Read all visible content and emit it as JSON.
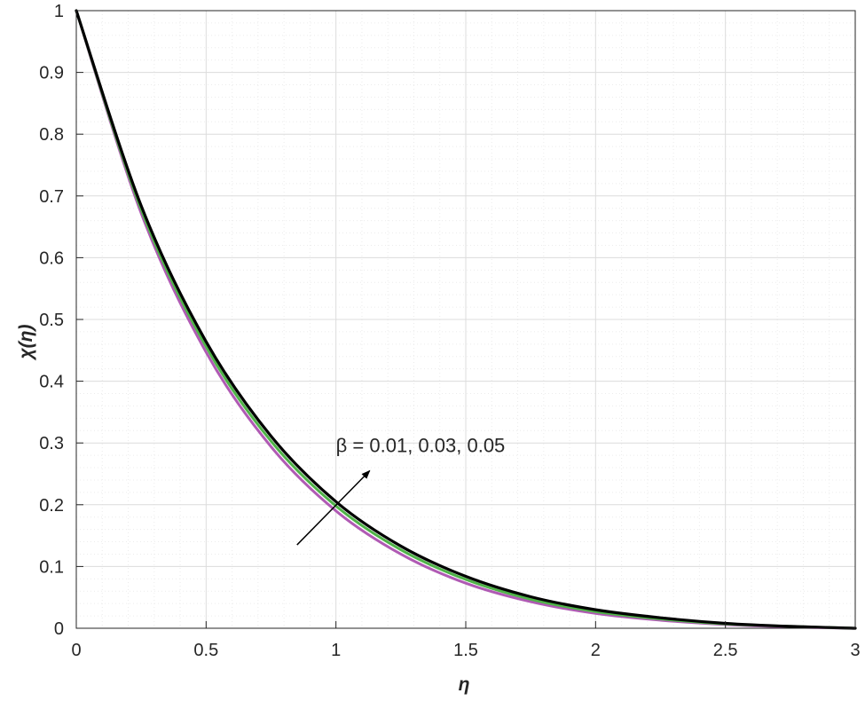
{
  "chart_data": {
    "type": "line",
    "title": "",
    "xlabel": "η",
    "ylabel": "χ(η)",
    "xlim": [
      0,
      3
    ],
    "ylim": [
      0,
      1
    ],
    "xticks": [
      0,
      0.5,
      1,
      1.5,
      2,
      2.5,
      3
    ],
    "xtick_labels": [
      "0",
      "0.5",
      "1",
      "1.5",
      "2",
      "2.5",
      "3"
    ],
    "yticks": [
      0,
      0.1,
      0.2,
      0.3,
      0.4,
      0.5,
      0.6,
      0.7,
      0.8,
      0.9,
      1
    ],
    "ytick_labels": [
      "0",
      "0.1",
      "0.2",
      "0.3",
      "0.4",
      "0.5",
      "0.6",
      "0.7",
      "0.8",
      "0.9",
      "1"
    ],
    "grid": true,
    "minor_grid": true,
    "legend": "none",
    "x": [
      0,
      0.25,
      0.5,
      0.75,
      1.0,
      1.25,
      1.5,
      1.75,
      2.0,
      2.25,
      2.5,
      2.75,
      3.0
    ],
    "series": [
      {
        "color": "#b05ab4",
        "values": [
          1.0,
          0.672,
          0.447,
          0.294,
          0.19,
          0.12,
          0.073,
          0.043,
          0.024,
          0.013,
          0.006,
          0.002,
          0.0
        ]
      },
      {
        "color": "#4fb348",
        "values": [
          1.0,
          0.678,
          0.456,
          0.303,
          0.198,
          0.127,
          0.079,
          0.047,
          0.027,
          0.015,
          0.007,
          0.003,
          0.0
        ]
      },
      {
        "color": "#000000",
        "values": [
          1.0,
          0.684,
          0.464,
          0.311,
          0.205,
          0.133,
          0.084,
          0.051,
          0.03,
          0.017,
          0.008,
          0.003,
          0.0
        ]
      }
    ],
    "annotations": [
      {
        "text": "β = 0.01, 0.03, 0.05",
        "arrow_from": [
          0.85,
          0.135
        ],
        "arrow_to": [
          1.13,
          0.255
        ],
        "text_at": [
          1.0,
          0.285
        ]
      }
    ],
    "colors": {
      "grid_major": "#dcdcdc",
      "grid_minor": "#ececec",
      "axis": "#262626"
    }
  }
}
